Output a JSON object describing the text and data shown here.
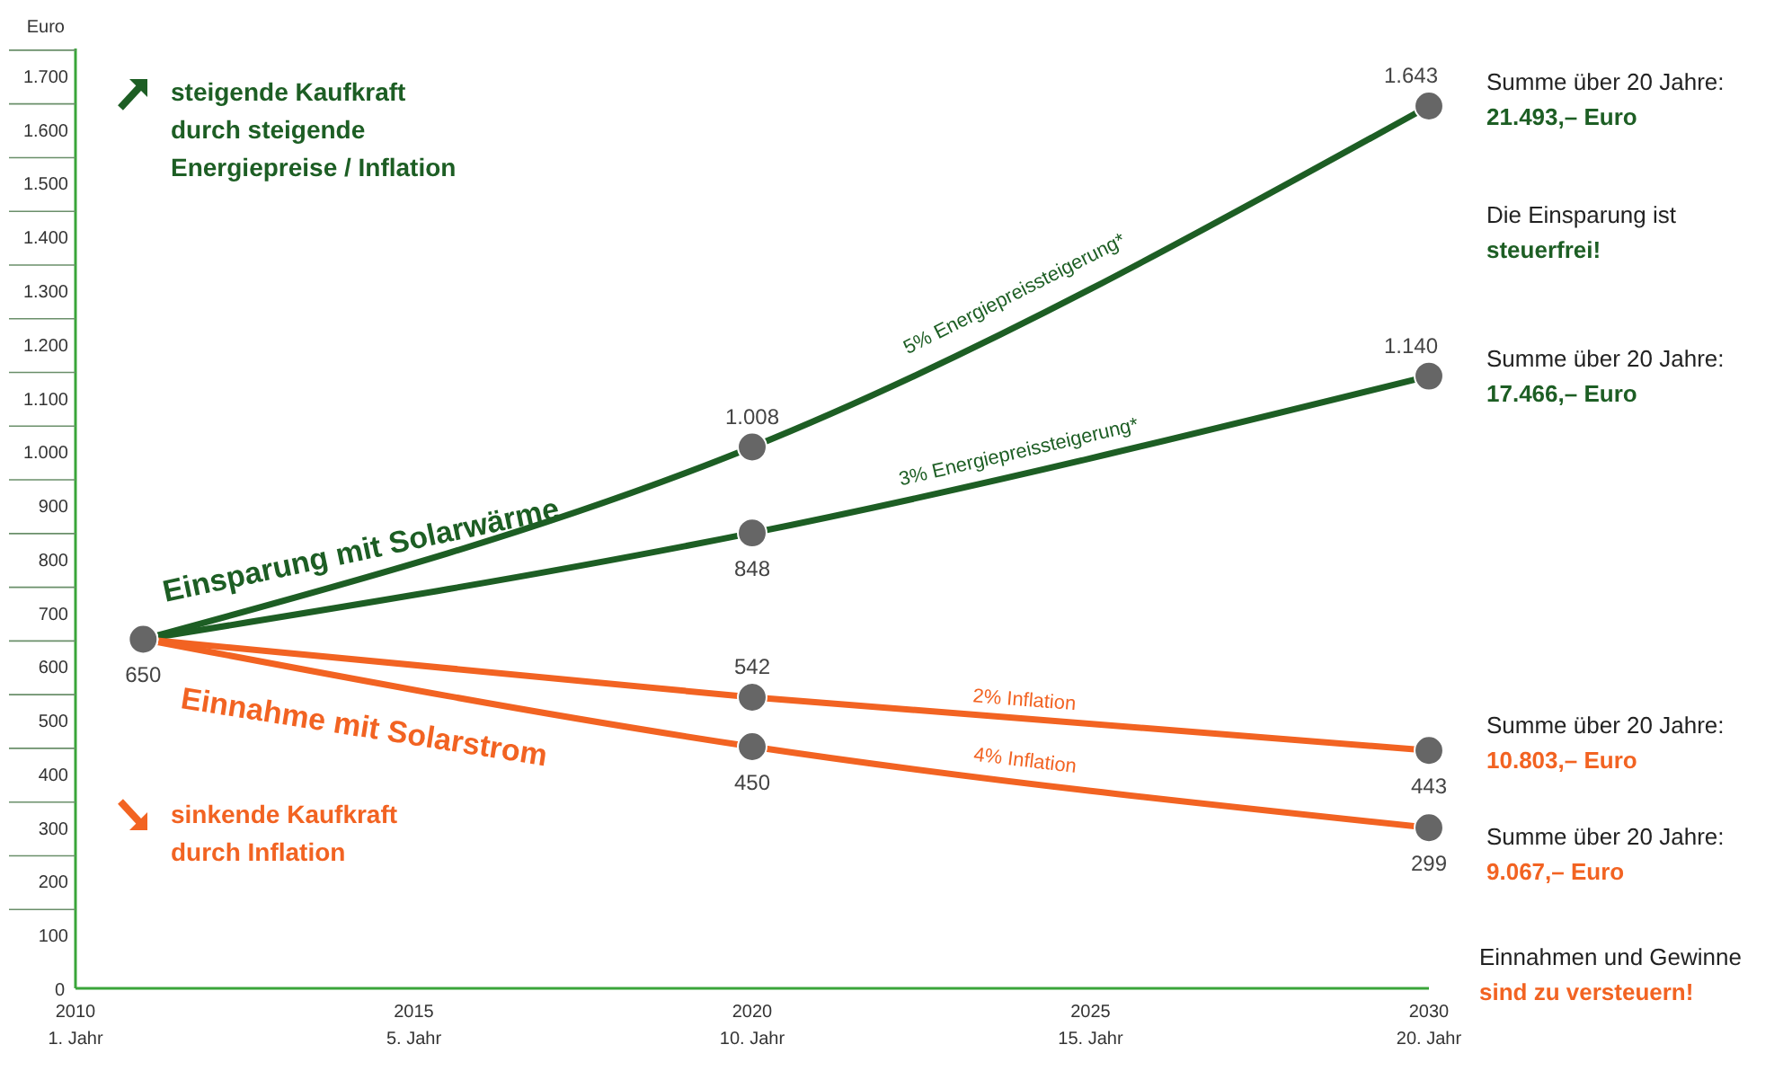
{
  "chart_data": {
    "type": "line",
    "ylabel": "Euro",
    "xlim": [
      2010,
      2030
    ],
    "xticks": [
      2010,
      2015,
      2020,
      2025,
      2030
    ],
    "ylim": [
      0,
      1750
    ],
    "yticks": [
      0,
      100,
      200,
      300,
      400,
      500,
      600,
      700,
      800,
      900,
      {
        "value": 1000,
        "label": "1.000"
      },
      {
        "value": 1100,
        "label": "1.100"
      },
      {
        "value": 1200,
        "label": "1.200"
      },
      {
        "value": 1300,
        "label": "1.300"
      },
      {
        "value": 1400,
        "label": "1.400"
      },
      {
        "value": 1500,
        "label": "1.500"
      },
      {
        "value": 1600,
        "label": "1.600"
      },
      {
        "value": 1700,
        "label": "1.700"
      }
    ],
    "x": [
      2011,
      2020,
      2030
    ],
    "series": [
      {
        "name": "5% Energiepreissteigerung*",
        "color": "#1d5e24",
        "values": [
          650,
          1008,
          1643
        ],
        "value_labels": [
          "650",
          "1.008",
          "1.643"
        ]
      },
      {
        "name": "3% Energiepreissteigerung*",
        "color": "#1d5e24",
        "values": [
          650,
          848,
          1140
        ],
        "value_labels": [
          null,
          "848",
          "1.140"
        ]
      },
      {
        "name": "2% Inflation",
        "color": "#f26322",
        "values": [
          650,
          542,
          443
        ],
        "value_labels": [
          null,
          "542",
          "443"
        ]
      },
      {
        "name": "4% Inflation",
        "color": "#f26322",
        "values": [
          650,
          450,
          299
        ],
        "value_labels": [
          null,
          "450",
          "299"
        ]
      }
    ],
    "marker": "circle",
    "line_style": "solid",
    "grid": false,
    "annotations": [
      "steigende Kaufkraft\ndurch steigende\nEnergiepreise / Inflation",
      "Einsparung mit Solarwärme",
      "Einnahme mit Solarstrom",
      "sinkende Kaufkraft\ndurch Inflation",
      "Summe über 20 Jahre:\n21.493,– Euro",
      "Die Einsparung ist\nsteuerfrei!",
      "Summe über 20 Jahre:\n17.466,– Euro",
      "Summe über 20 Jahre:\n10.803,– Euro",
      "Summe über 20 Jahre:\n9.067,– Euro",
      "Einnahmen und Gewinne\nsind zu versteuern!",
      "1. Jahr",
      "5. Jahr",
      "10. Jahr",
      "15. Jahr",
      "20. Jahr"
    ]
  }
}
